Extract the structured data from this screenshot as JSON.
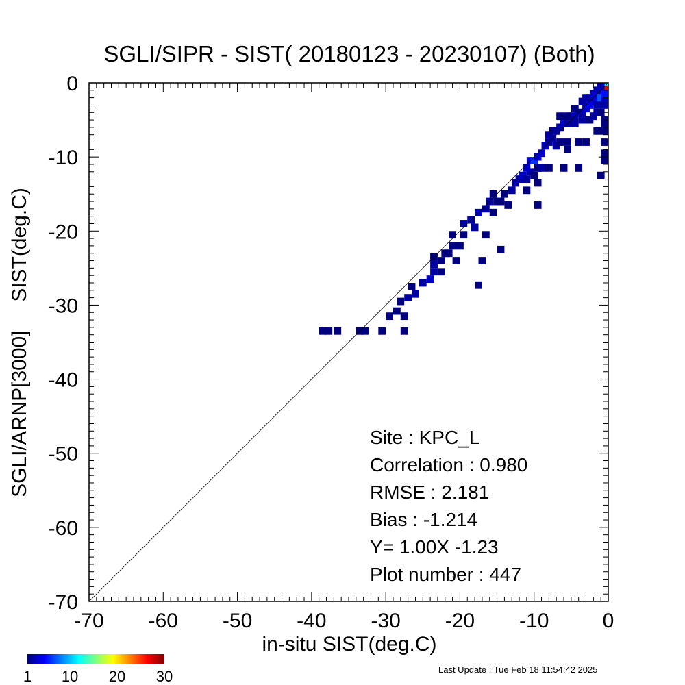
{
  "chart_data": {
    "type": "heatmap",
    "title": "SGLI/SIPR - SIST( 20180123 - 20230107) (Both)",
    "xlabel": "in-situ SIST(deg.C)",
    "ylabel": "SGLI/ARNP[3000]     SIST(deg.C)",
    "xlim": [
      -70,
      0
    ],
    "ylim": [
      -70,
      0
    ],
    "x_ticks": [
      "-70",
      "-60",
      "-50",
      "-40",
      "-30",
      "-20",
      "-10",
      "0"
    ],
    "y_ticks": [
      "-70",
      "-60",
      "-50",
      "-40",
      "-30",
      "-20",
      "-10",
      "0"
    ],
    "one_to_one_line": true,
    "bin_size": 1,
    "colorbar": {
      "min": 1,
      "max": 30,
      "tick_labels": [
        "1",
        "10",
        "20",
        "30"
      ],
      "tick_values": [
        1,
        10,
        20,
        30
      ],
      "colors": [
        "#00007f",
        "#0000ff",
        "#0080ff",
        "#00ffff",
        "#80ff80",
        "#ffff00",
        "#ff8000",
        "#ff0000",
        "#7f0000"
      ]
    },
    "cells": [
      [
        -38.5,
        -33.5,
        1
      ],
      [
        -37.7,
        -33.5,
        1
      ],
      [
        -36.5,
        -33.5,
        1
      ],
      [
        -33.5,
        -33.5,
        1
      ],
      [
        -32.8,
        -33.5,
        1
      ],
      [
        -30.5,
        -33.5,
        1
      ],
      [
        -27.5,
        -33.5,
        1
      ],
      [
        -29.5,
        -31.5,
        1
      ],
      [
        -28.5,
        -30.8,
        1
      ],
      [
        -27.5,
        -31.5,
        1
      ],
      [
        -28,
        -29.5,
        1
      ],
      [
        -27,
        -29,
        2
      ],
      [
        -26,
        -28.5,
        2
      ],
      [
        -26.5,
        -27.5,
        1
      ],
      [
        -25,
        -27,
        2
      ],
      [
        -24,
        -26.5,
        3
      ],
      [
        -23.5,
        -25.5,
        2
      ],
      [
        -23.5,
        -24.5,
        2
      ],
      [
        -23.5,
        -23.5,
        1
      ],
      [
        -22.5,
        -25.5,
        1
      ],
      [
        -22.5,
        -24,
        1
      ],
      [
        -21.5,
        -23,
        1
      ],
      [
        -22,
        -23,
        1
      ],
      [
        -17.5,
        -27.3,
        1
      ],
      [
        -20.5,
        -24,
        1
      ],
      [
        -17,
        -24,
        1
      ],
      [
        -14.5,
        -22.5,
        1
      ],
      [
        -21,
        -22,
        1
      ],
      [
        -20,
        -22,
        1
      ],
      [
        -19.5,
        -20.5,
        1
      ],
      [
        -16.5,
        -20.5,
        1
      ],
      [
        -21,
        -20.5,
        1
      ],
      [
        -19.5,
        -19,
        2
      ],
      [
        -18.5,
        -18.5,
        2
      ],
      [
        -18,
        -19.5,
        2
      ],
      [
        -17.5,
        -17.5,
        3
      ],
      [
        -16.5,
        -17,
        2
      ],
      [
        -16,
        -16,
        2
      ],
      [
        -15.5,
        -17.5,
        1
      ],
      [
        -15,
        -16,
        1
      ],
      [
        -15.5,
        -15,
        1
      ],
      [
        -14.5,
        -16,
        1
      ],
      [
        -14,
        -15,
        1
      ],
      [
        -13.5,
        -16.5,
        1
      ],
      [
        -9.5,
        -16.5,
        1
      ],
      [
        -13,
        -14.5,
        2
      ],
      [
        -12.5,
        -13.5,
        2
      ],
      [
        -12,
        -13,
        2
      ],
      [
        -11.5,
        -12.5,
        3
      ],
      [
        -11,
        -13,
        2
      ],
      [
        -10.5,
        -12,
        2
      ],
      [
        -10,
        -12.5,
        1
      ],
      [
        -9.5,
        -13.5,
        1
      ],
      [
        -11,
        -14.5,
        1
      ],
      [
        -9.5,
        -11.5,
        1
      ],
      [
        -11,
        -11.5,
        3
      ],
      [
        -10.5,
        -10.5,
        4
      ],
      [
        -10,
        -10.5,
        6
      ],
      [
        -9.5,
        -10,
        3
      ],
      [
        -9,
        -9.5,
        3
      ],
      [
        -9,
        -11.5,
        2
      ],
      [
        -8,
        -11.5,
        1
      ],
      [
        -6,
        -11.5,
        1
      ],
      [
        -4,
        -11.5,
        1
      ],
      [
        -1,
        -12.5,
        1
      ],
      [
        -8.5,
        -8.5,
        3
      ],
      [
        -8,
        -8,
        2
      ],
      [
        -7.5,
        -7.5,
        2
      ],
      [
        -7,
        -8.5,
        2
      ],
      [
        -6.5,
        -8,
        1
      ],
      [
        -8,
        -7,
        2
      ],
      [
        -7.5,
        -6.5,
        1
      ],
      [
        -5.5,
        -8,
        1
      ],
      [
        -4,
        -8,
        1
      ],
      [
        -5.5,
        -9,
        1
      ],
      [
        -3,
        -8,
        1
      ],
      [
        -0.5,
        -9.5,
        1
      ],
      [
        -0.5,
        -10.5,
        1
      ],
      [
        -0.5,
        -8,
        1
      ],
      [
        -7,
        -6.5,
        2
      ],
      [
        -6.5,
        -6,
        2
      ],
      [
        -6,
        -5.5,
        3
      ],
      [
        -5.5,
        -5.5,
        2
      ],
      [
        -5,
        -4.5,
        3
      ],
      [
        -4.5,
        -5,
        2
      ],
      [
        -4,
        -4,
        3
      ],
      [
        -3.5,
        -4,
        2
      ],
      [
        -3,
        -3.5,
        3
      ],
      [
        -2.5,
        -3,
        4
      ],
      [
        -2,
        -2.5,
        4
      ],
      [
        -1.5,
        -2,
        4
      ],
      [
        -1,
        -1.5,
        6
      ],
      [
        -6.5,
        -4.5,
        1
      ],
      [
        -5.5,
        -4.5,
        1
      ],
      [
        -4.5,
        -3.5,
        1
      ],
      [
        -3.5,
        -2.5,
        2
      ],
      [
        -2.5,
        -2,
        2
      ],
      [
        -1.5,
        -1,
        2
      ],
      [
        -0.5,
        -0.5,
        12
      ],
      [
        -0.5,
        -0.9,
        27
      ],
      [
        -1,
        -0.5,
        3
      ],
      [
        -4.5,
        -5.5,
        2
      ],
      [
        -3.5,
        -5,
        2
      ],
      [
        -2.5,
        -5,
        1
      ],
      [
        -2,
        -4.5,
        2
      ],
      [
        -1.5,
        -4,
        2
      ],
      [
        -1,
        -4,
        1
      ],
      [
        -0.5,
        -5,
        1
      ],
      [
        -0.5,
        -6,
        1
      ],
      [
        -0.5,
        -6.5,
        1
      ],
      [
        -1.5,
        -6.5,
        1
      ],
      [
        -3,
        -2,
        2
      ],
      [
        -2,
        -1.5,
        3
      ],
      [
        -1,
        -2,
        7
      ],
      [
        -0.5,
        -2,
        3
      ],
      [
        -1.5,
        -3,
        2
      ],
      [
        -0.5,
        -3,
        2
      ],
      [
        -0.5,
        -1.5,
        5
      ]
    ],
    "annotations": [
      {
        "label": "Site : ",
        "value": "KPC_L"
      },
      {
        "label": "Correlation :    ",
        "value": "0.980"
      },
      {
        "label": "RMSE :    ",
        "value": "2.181"
      },
      {
        "label": "Bias :   ",
        "value": "-1.214"
      },
      {
        "label": "Y=    ",
        "value": "1.00X  -1.23"
      },
      {
        "label": "Plot number :       ",
        "value": "447"
      }
    ]
  },
  "footer": "Last Update : Tue Feb 18 11:54:42 2025"
}
